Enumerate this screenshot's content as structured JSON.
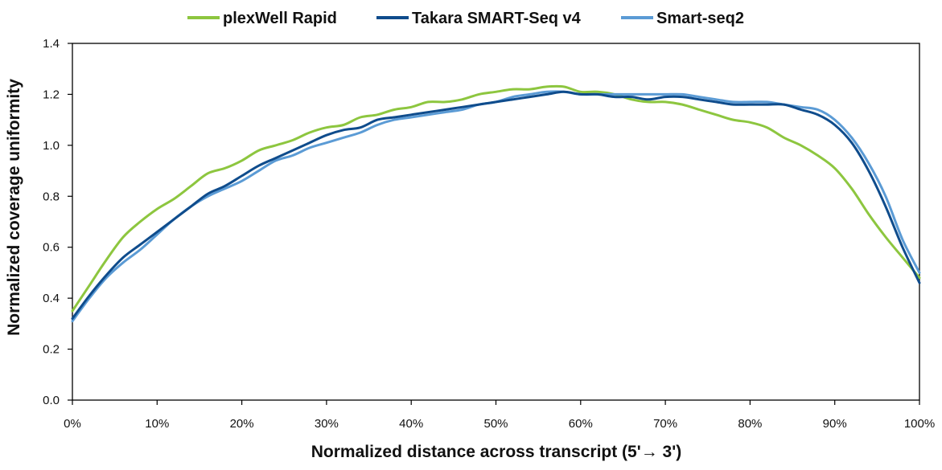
{
  "chart_data": {
    "type": "line",
    "title": "",
    "xlabel": "Normalized distance across transcript (5'→ 3')",
    "ylabel": "Normalized coverage uniformity",
    "xlim": [
      0,
      100
    ],
    "ylim": [
      0,
      1.4
    ],
    "x_ticks": [
      "0%",
      "10%",
      "20%",
      "30%",
      "40%",
      "50%",
      "60%",
      "70%",
      "80%",
      "90%",
      "100%"
    ],
    "y_ticks": [
      "0.0",
      "0.2",
      "0.4",
      "0.6",
      "0.8",
      "1.0",
      "1.2",
      "1.4"
    ],
    "grid": false,
    "legend_position": "top",
    "x": [
      0,
      2,
      4,
      6,
      8,
      10,
      12,
      14,
      16,
      18,
      20,
      22,
      24,
      26,
      28,
      30,
      32,
      34,
      36,
      38,
      40,
      42,
      44,
      46,
      48,
      50,
      52,
      54,
      56,
      58,
      60,
      62,
      64,
      66,
      68,
      70,
      72,
      74,
      76,
      78,
      80,
      82,
      84,
      86,
      88,
      90,
      92,
      94,
      96,
      98,
      100
    ],
    "series": [
      {
        "name": "plexWell Rapid",
        "color": "#8dc63f",
        "values": [
          0.35,
          0.45,
          0.55,
          0.64,
          0.7,
          0.75,
          0.79,
          0.84,
          0.89,
          0.91,
          0.94,
          0.98,
          1.0,
          1.02,
          1.05,
          1.07,
          1.08,
          1.11,
          1.12,
          1.14,
          1.15,
          1.17,
          1.17,
          1.18,
          1.2,
          1.21,
          1.22,
          1.22,
          1.23,
          1.23,
          1.21,
          1.21,
          1.2,
          1.18,
          1.17,
          1.17,
          1.16,
          1.14,
          1.12,
          1.1,
          1.09,
          1.07,
          1.03,
          1.0,
          0.96,
          0.91,
          0.83,
          0.73,
          0.64,
          0.56,
          0.48
        ]
      },
      {
        "name": "Takara SMART-Seq v4",
        "color": "#0f4c8c",
        "values": [
          0.32,
          0.41,
          0.49,
          0.56,
          0.61,
          0.66,
          0.71,
          0.76,
          0.81,
          0.84,
          0.88,
          0.92,
          0.95,
          0.98,
          1.01,
          1.04,
          1.06,
          1.07,
          1.1,
          1.11,
          1.12,
          1.13,
          1.14,
          1.15,
          1.16,
          1.17,
          1.18,
          1.19,
          1.2,
          1.21,
          1.2,
          1.2,
          1.19,
          1.19,
          1.18,
          1.19,
          1.19,
          1.18,
          1.17,
          1.16,
          1.16,
          1.16,
          1.16,
          1.14,
          1.12,
          1.08,
          1.01,
          0.9,
          0.76,
          0.6,
          0.46
        ]
      },
      {
        "name": "Smart-seq2",
        "color": "#5b9bd5",
        "values": [
          0.31,
          0.4,
          0.48,
          0.54,
          0.59,
          0.65,
          0.71,
          0.76,
          0.8,
          0.83,
          0.86,
          0.9,
          0.94,
          0.96,
          0.99,
          1.01,
          1.03,
          1.05,
          1.08,
          1.1,
          1.11,
          1.12,
          1.13,
          1.14,
          1.16,
          1.17,
          1.19,
          1.2,
          1.21,
          1.21,
          1.2,
          1.2,
          1.2,
          1.2,
          1.2,
          1.2,
          1.2,
          1.19,
          1.18,
          1.17,
          1.17,
          1.17,
          1.16,
          1.15,
          1.14,
          1.1,
          1.03,
          0.93,
          0.8,
          0.63,
          0.5
        ]
      }
    ]
  }
}
